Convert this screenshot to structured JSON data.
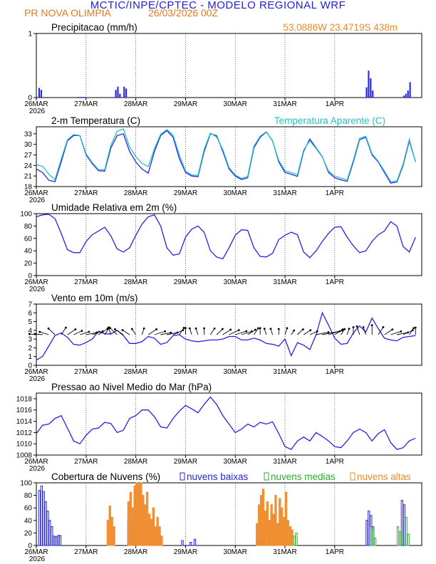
{
  "header": {
    "title": "MCTIC/INPE/CPTEC - MODELO REGIONAL WRF",
    "station": "PR NOVA OLIMPIA",
    "run": "26/03/2026 00Z",
    "location": "53.0886W 23.4719S 438m"
  },
  "colors": {
    "blue": "#2323e8",
    "cyan": "#25c0c0",
    "green": "#24b324",
    "orange": "#ef8a2a",
    "black": "#000000"
  },
  "chart_data": [
    {
      "type": "bar",
      "title": "Precipitacao (mm/h)",
      "ylim": [
        0,
        1
      ],
      "yticks": [
        "0",
        "1"
      ],
      "x_labels": [
        "26MAR",
        "27MAR",
        "28MAR",
        "29MAR",
        "30MAR",
        "31MAR",
        "1APR"
      ],
      "x_year": "2026",
      "x_start_hour": 0,
      "hours": [
        1,
        2,
        20,
        21,
        22,
        23,
        38,
        39,
        40,
        42,
        43,
        159,
        160,
        161,
        162,
        177,
        178,
        179,
        180
      ],
      "values": [
        0.15,
        0.12,
        0.01,
        0.01,
        0.01,
        0.01,
        0.12,
        0.17,
        0.06,
        0.17,
        0.14,
        0.16,
        0.42,
        0.3,
        0.11,
        0.03,
        0.06,
        0.11,
        0.24
      ]
    },
    {
      "type": "line",
      "title": "2-m Temperatura (C)",
      "legend_extra": "Temperatura Aparente (C)",
      "ylim": [
        18,
        35
      ],
      "yticks": [
        "18",
        "21",
        "24",
        "27",
        "30",
        "33"
      ],
      "x_labels": [
        "26MAR",
        "27MAR",
        "28MAR",
        "29MAR",
        "30MAR",
        "31MAR",
        "1APR"
      ],
      "x_year": "2026",
      "series": [
        {
          "name": "2-m Temperatura (C)",
          "color": "#2323e8",
          "hours": [
            0,
            3,
            6,
            9,
            12,
            15,
            18,
            21,
            24,
            27,
            30,
            33,
            36,
            39,
            42,
            45,
            48,
            51,
            54,
            57,
            60,
            63,
            66,
            69,
            72,
            75,
            78,
            81,
            84,
            87,
            90,
            93,
            96,
            99,
            102,
            105,
            108,
            111,
            114,
            117,
            120,
            123,
            126,
            129,
            132,
            135,
            138,
            141,
            144,
            147,
            150,
            153,
            156,
            159,
            162,
            165,
            168,
            171,
            174,
            177,
            180,
            183
          ],
          "values": [
            23.0,
            22.0,
            19.8,
            19.4,
            25.0,
            31.0,
            32.5,
            32.5,
            27.0,
            24.5,
            22.5,
            22.4,
            29.0,
            32.5,
            33.0,
            28.0,
            25.0,
            23.0,
            21.8,
            28.0,
            32.5,
            33.9,
            32.0,
            26.0,
            22.0,
            21.0,
            20.8,
            28.0,
            33.0,
            32.5,
            28.0,
            23.0,
            21.0,
            20.0,
            20.5,
            29.0,
            32.0,
            33.5,
            31.0,
            25.0,
            22.0,
            21.5,
            20.9,
            28.0,
            31.5,
            29.0,
            26.5,
            22.0,
            20.5,
            19.9,
            19.5,
            25.0,
            31.3,
            32.0,
            27.0,
            25.0,
            22.0,
            19.0,
            19.3,
            24.0,
            31.0,
            25.0
          ]
        },
        {
          "name": "Temperatura Aparente (C)",
          "color": "#25c0c0",
          "hours": [
            0,
            3,
            6,
            9,
            12,
            15,
            18,
            21,
            24,
            27,
            30,
            33,
            36,
            39,
            42,
            45,
            48,
            51,
            54,
            57,
            60,
            63,
            66,
            69,
            72,
            75,
            78,
            81,
            84,
            87,
            90,
            93,
            96,
            99,
            102,
            105,
            108,
            111,
            114,
            117,
            120,
            123,
            126,
            129,
            132,
            135,
            138,
            141,
            144,
            147,
            150,
            153,
            156,
            159,
            162,
            165,
            168,
            171,
            174,
            177,
            180,
            183
          ],
          "values": [
            24.2,
            23.8,
            21.5,
            20.0,
            25.8,
            31.3,
            32.8,
            32.5,
            27.3,
            24.8,
            22.8,
            22.8,
            29.8,
            33.7,
            34.4,
            29.3,
            26.5,
            24.6,
            23.7,
            28.8,
            32.9,
            34.2,
            32.6,
            27.0,
            22.4,
            21.3,
            21.2,
            28.6,
            33.2,
            32.1,
            28.5,
            23.4,
            21.3,
            20.3,
            20.9,
            29.5,
            32.3,
            33.6,
            30.9,
            25.4,
            22.5,
            22.0,
            21.4,
            28.4,
            31.0,
            28.8,
            26.4,
            22.4,
            21.0,
            20.4,
            19.9,
            25.5,
            31.7,
            32.3,
            27.3,
            25.2,
            22.4,
            19.4,
            19.6,
            24.4,
            31.4,
            25.0
          ]
        }
      ]
    },
    {
      "type": "line",
      "title": "Umidade Relativa em 2m (%)",
      "ylim": [
        0,
        100
      ],
      "yticks": [
        "0",
        "20",
        "40",
        "60",
        "80",
        "100"
      ],
      "x_labels": [
        "26MAR",
        "27MAR",
        "28MAR",
        "29MAR",
        "30MAR",
        "31MAR",
        "1APR"
      ],
      "x_year": "2026",
      "series": [
        {
          "name": "Umidade Relativa em 2m (%)",
          "color": "#2323e8",
          "hours": [
            0,
            3,
            6,
            9,
            12,
            15,
            18,
            21,
            24,
            27,
            30,
            33,
            36,
            39,
            42,
            45,
            48,
            51,
            54,
            57,
            60,
            63,
            66,
            69,
            72,
            75,
            78,
            81,
            84,
            87,
            90,
            93,
            96,
            99,
            102,
            105,
            108,
            111,
            114,
            117,
            120,
            123,
            126,
            129,
            132,
            135,
            138,
            141,
            144,
            147,
            150,
            153,
            156,
            159,
            162,
            165,
            168,
            171,
            174,
            177,
            180,
            183
          ],
          "values": [
            95,
            98,
            99,
            92,
            68,
            42,
            37,
            37,
            55,
            66,
            72,
            78,
            64,
            43,
            38,
            45,
            65,
            83,
            95,
            98,
            80,
            45,
            33,
            35,
            62,
            75,
            80,
            70,
            40,
            30,
            27,
            45,
            65,
            74,
            73,
            45,
            31,
            30,
            36,
            58,
            65,
            70,
            66,
            38,
            29,
            40,
            55,
            68,
            78,
            79,
            62,
            48,
            37,
            40,
            55,
            66,
            72,
            87,
            80,
            47,
            38,
            62
          ]
        }
      ]
    },
    {
      "type": "line",
      "title": "Vento em 10m (m/s)",
      "ylim": [
        0,
        7
      ],
      "yticks": [
        "0",
        "1",
        "2",
        "3",
        "4",
        "5",
        "6",
        "7"
      ],
      "x_labels": [
        "26MAR",
        "27MAR",
        "28MAR",
        "29MAR",
        "30MAR",
        "31MAR",
        "1APR"
      ],
      "x_year": "2026",
      "series": [
        {
          "name": "Vento em 10m (m/s)",
          "color": "#2323e8",
          "hours": [
            0,
            3,
            6,
            9,
            12,
            15,
            18,
            21,
            24,
            27,
            30,
            33,
            36,
            39,
            42,
            45,
            48,
            51,
            54,
            57,
            60,
            63,
            66,
            69,
            72,
            75,
            78,
            81,
            84,
            87,
            90,
            93,
            96,
            99,
            102,
            105,
            108,
            111,
            114,
            117,
            120,
            123,
            126,
            129,
            132,
            135,
            138,
            141,
            144,
            147,
            150,
            153,
            156,
            159,
            162,
            165,
            168,
            171,
            174,
            177,
            180,
            183
          ],
          "values": [
            0.6,
            1.0,
            2.2,
            3.4,
            3.7,
            3.2,
            2.4,
            2.3,
            2.6,
            3.0,
            3.9,
            3.6,
            3.6,
            4.0,
            3.4,
            2.5,
            2.5,
            2.7,
            3.3,
            3.1,
            2.4,
            2.6,
            3.4,
            3.5,
            3.0,
            2.8,
            2.7,
            2.8,
            2.9,
            2.9,
            3.0,
            3.3,
            3.3,
            2.9,
            2.9,
            3.1,
            2.9,
            2.5,
            2.4,
            2.2,
            3.0,
            1.1,
            2.6,
            2.3,
            1.8,
            3.5,
            6.0,
            4.6,
            3.1,
            2.4,
            2.5,
            3.7,
            4.5,
            3.8,
            5.4,
            4.2,
            3.1,
            2.9,
            2.8,
            3.2,
            3.3,
            3.4
          ]
        }
      ],
      "wind_vectors": {
        "note": "arrows drawn along y=3.5 every 3 h",
        "dir_deg": [
          100,
          100,
          120,
          150,
          200,
          220,
          230,
          240,
          250,
          240,
          220,
          200,
          170,
          150,
          140,
          140,
          160,
          190,
          220,
          240,
          250,
          250,
          230,
          200,
          180,
          170,
          170,
          180,
          200,
          210,
          220,
          230,
          240,
          240,
          220,
          200,
          180,
          170,
          170,
          180,
          190,
          200,
          210,
          220,
          230,
          250,
          250,
          240,
          220,
          200,
          190,
          180,
          170,
          170,
          180,
          200,
          220,
          240,
          250,
          230,
          200,
          180
        ]
      }
    },
    {
      "type": "line",
      "title": "Pressao ao Nivel Medio do Mar (hPa)",
      "ylim": [
        1008,
        1019
      ],
      "yticks": [
        "1008",
        "1010",
        "1012",
        "1014",
        "1016",
        "1018"
      ],
      "x_labels": [
        "26MAR",
        "27MAR",
        "28MAR",
        "29MAR",
        "30MAR",
        "31MAR",
        "1APR"
      ],
      "x_year": "2026",
      "series": [
        {
          "name": "Pressao ao Nivel Medio do Mar (hPa)",
          "color": "#2323e8",
          "hours": [
            0,
            3,
            6,
            9,
            12,
            15,
            18,
            21,
            24,
            27,
            30,
            33,
            36,
            39,
            42,
            45,
            48,
            51,
            54,
            57,
            60,
            63,
            66,
            69,
            72,
            75,
            78,
            81,
            84,
            87,
            90,
            93,
            96,
            99,
            102,
            105,
            108,
            111,
            114,
            117,
            120,
            123,
            126,
            129,
            132,
            135,
            138,
            141,
            144,
            147,
            150,
            153,
            156,
            159,
            162,
            165,
            168,
            171,
            174,
            177,
            180,
            183
          ],
          "values": [
            1011.8,
            1013.3,
            1013.5,
            1014.5,
            1015.0,
            1012.8,
            1010.5,
            1010.0,
            1011.5,
            1012.6,
            1012.8,
            1013.8,
            1013.6,
            1012.0,
            1012.4,
            1014.5,
            1015.0,
            1016.0,
            1016.0,
            1014.8,
            1013.0,
            1012.8,
            1014.5,
            1015.8,
            1016.8,
            1016.2,
            1015.5,
            1017.0,
            1018.3,
            1017.0,
            1015.0,
            1013.5,
            1012.0,
            1012.6,
            1013.5,
            1013.0,
            1013.8,
            1013.5,
            1013.9,
            1011.8,
            1009.5,
            1009.0,
            1010.5,
            1011.2,
            1010.5,
            1012.0,
            1011.3,
            1010.5,
            1009.5,
            1009.3,
            1010.5,
            1012.0,
            1012.6,
            1012.0,
            1010.5,
            1011.8,
            1012.5,
            1010.2,
            1009.0,
            1009.3,
            1010.5,
            1011.0
          ]
        }
      ]
    },
    {
      "type": "bar",
      "title": "Cobertura de Nuvens (%)",
      "ylim": [
        0,
        100
      ],
      "yticks": [
        "0",
        "20",
        "40",
        "60",
        "80",
        "100"
      ],
      "x_labels": [
        "26MAR",
        "27MAR",
        "28MAR",
        "29MAR",
        "30MAR",
        "31MAR",
        "1APR"
      ],
      "x_year": "2026",
      "legend": [
        "nuvens baixas",
        "nuvens medias",
        "nuvens altas"
      ],
      "series": [
        {
          "name": "nuvens baixas",
          "color": "#2323e8",
          "hours": [
            1,
            2,
            3,
            4,
            5,
            6,
            7,
            8,
            9,
            10,
            11,
            44,
            45,
            46,
            47,
            48,
            70,
            74,
            76,
            106,
            107,
            108,
            109,
            110,
            112,
            114,
            116,
            159,
            160,
            161,
            162,
            176,
            177
          ],
          "values": [
            88,
            95,
            86,
            70,
            55,
            40,
            30,
            15,
            14,
            16,
            16,
            42,
            38,
            30,
            22,
            10,
            8,
            5,
            10,
            8,
            5,
            6,
            7,
            8,
            5,
            6,
            4,
            40,
            55,
            48,
            30,
            72,
            65
          ]
        },
        {
          "name": "nuvens medias",
          "color": "#24b324",
          "hours": [
            124,
            125,
            161,
            162,
            163,
            174,
            175,
            178,
            179
          ],
          "values": [
            15,
            20,
            30,
            25,
            12,
            30,
            22,
            45,
            18
          ]
        },
        {
          "name": "nuvens altas",
          "color": "#ef8a2a",
          "hours": [
            34,
            35,
            36,
            37,
            44,
            45,
            46,
            47,
            48,
            49,
            50,
            51,
            52,
            53,
            54,
            55,
            56,
            57,
            58,
            59,
            60,
            106,
            107,
            108,
            109,
            110,
            111,
            112,
            113,
            114,
            115,
            116,
            117,
            118,
            119,
            120,
            121,
            122,
            123
          ],
          "values": [
            40,
            63,
            45,
            30,
            70,
            85,
            60,
            95,
            100,
            98,
            100,
            80,
            65,
            85,
            50,
            42,
            60,
            30,
            45,
            30,
            15,
            35,
            65,
            80,
            90,
            55,
            70,
            40,
            65,
            50,
            80,
            35,
            75,
            60,
            45,
            85,
            40,
            30,
            25
          ]
        }
      ]
    }
  ]
}
